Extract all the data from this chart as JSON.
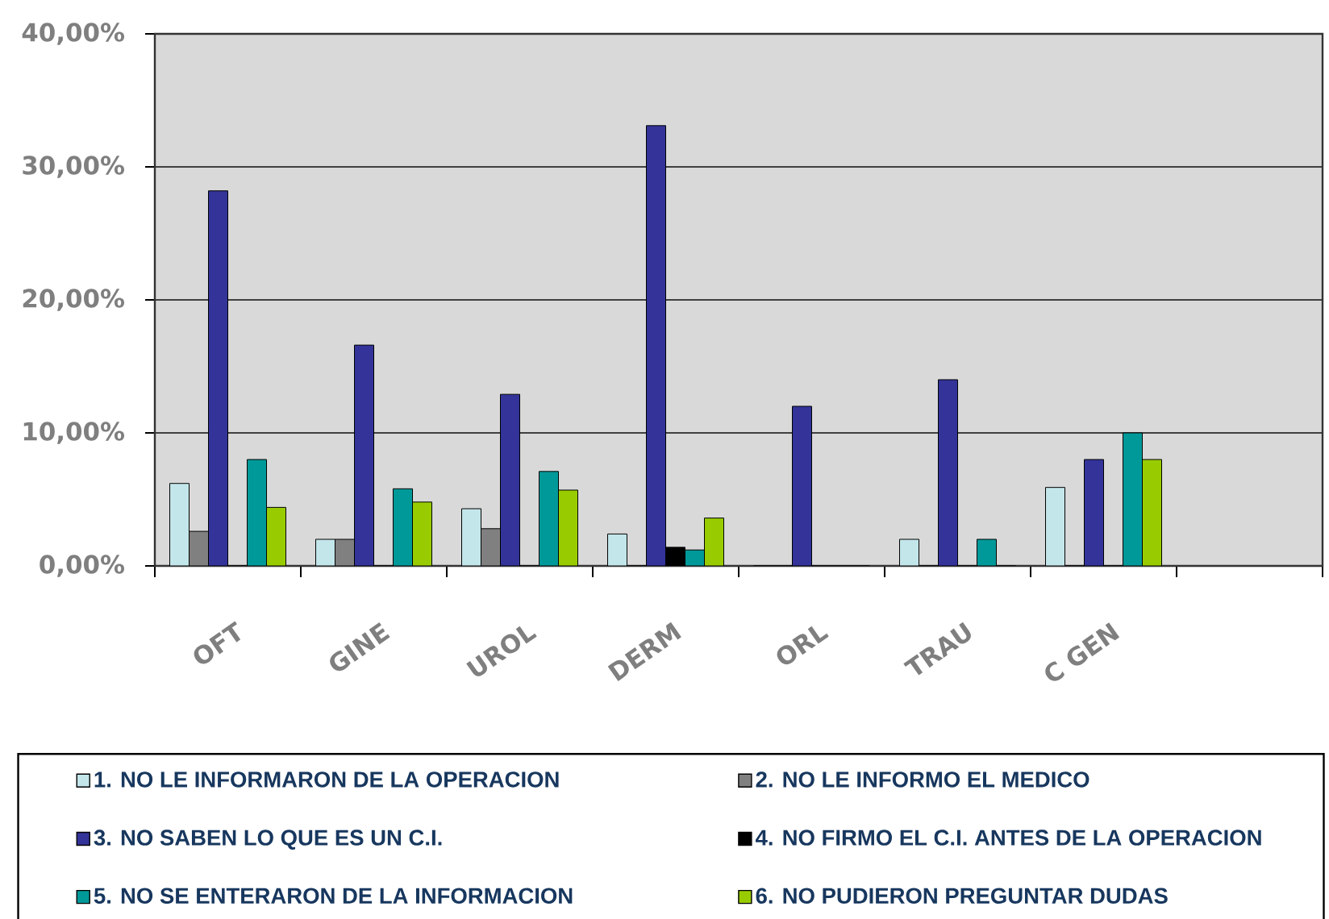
{
  "chart_data": {
    "type": "bar",
    "categories": [
      "OFT",
      "GINE",
      "UROL",
      "DERM",
      "ORL",
      "TRAU",
      "C GEN",
      null
    ],
    "series": [
      {
        "name": "1. NO LE INFORMARON DE LA OPERACION",
        "color": "#c3e6ea",
        "values": [
          6.2,
          2.0,
          4.3,
          2.4,
          0,
          2.0,
          5.9,
          null
        ]
      },
      {
        "name": "2. NO LE INFORMO EL MEDICO",
        "color": "#808080",
        "values": [
          2.6,
          2.0,
          2.8,
          0,
          0,
          0,
          0,
          null
        ]
      },
      {
        "name": "3. NO SABEN LO QUE ES UN C.I.",
        "color": "#333399",
        "values": [
          28.2,
          16.6,
          12.9,
          33.1,
          12.0,
          14.0,
          8.0,
          null
        ]
      },
      {
        "name": "4. NO FIRMO EL C.I. ANTES DE LA OPERACION",
        "color": "#000000",
        "values": [
          0,
          0,
          0,
          1.4,
          0,
          0,
          0,
          null
        ]
      },
      {
        "name": "5. NO SE ENTERARON DE LA INFORMACION",
        "color": "#009999",
        "values": [
          8.0,
          5.8,
          7.1,
          1.2,
          0,
          2.0,
          10.0,
          null
        ]
      },
      {
        "name": "6. NO PUDIERON PREGUNTAR DUDAS",
        "color": "#99cc00",
        "values": [
          4.4,
          4.8,
          5.7,
          3.6,
          0,
          0,
          8.0,
          null
        ]
      }
    ],
    "ylim": [
      0,
      40
    ],
    "yticks": [
      {
        "value": 0,
        "label": "0,00%"
      },
      {
        "value": 10,
        "label": "10,00%"
      },
      {
        "value": 20,
        "label": "20,00%"
      },
      {
        "value": 30,
        "label": "30,00%"
      },
      {
        "value": 40,
        "label": "40,00%"
      }
    ],
    "grid": "y",
    "legend": "bottom"
  }
}
